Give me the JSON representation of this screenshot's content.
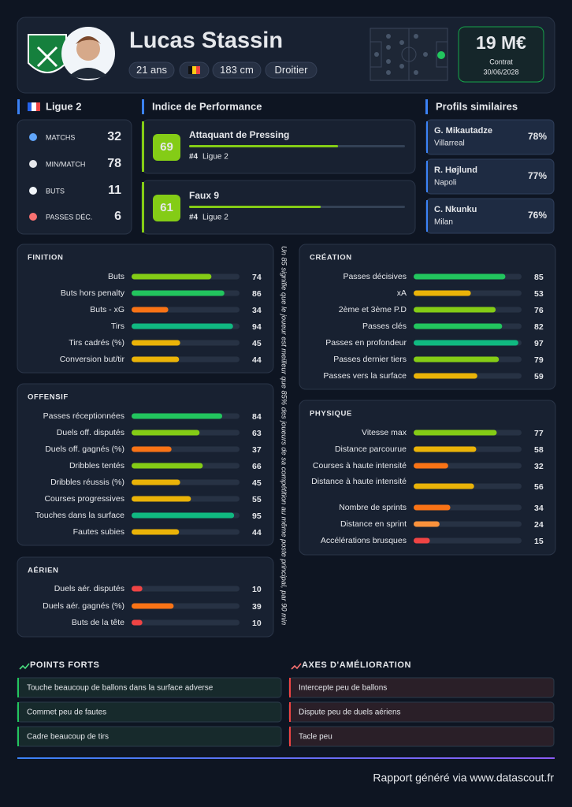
{
  "header": {
    "name": "Lucas Stassin",
    "tags": [
      "21 ans",
      "183 cm",
      "Droitier"
    ],
    "value": "19 M€",
    "contract_label": "Contrat",
    "contract_date": "30/06/2028"
  },
  "xlim": [
    0,
    100
  ],
  "league": {
    "title": "Ligue 2",
    "stats": [
      {
        "label": "MATCHS",
        "value": 32
      },
      {
        "label": "MIN/MATCH",
        "value": 78
      },
      {
        "label": "BUTS",
        "value": 11
      },
      {
        "label": "PASSES DÉC.",
        "value": 6
      }
    ]
  },
  "performance": {
    "title": "Indice de Performance",
    "profiles": [
      {
        "score": 69,
        "name": "Attaquant de Pressing",
        "rank": "#4",
        "league": "Ligue 2"
      },
      {
        "score": 61,
        "name": "Faux 9",
        "rank": "#4",
        "league": "Ligue 2"
      }
    ]
  },
  "similar": {
    "title": "Profils similaires",
    "players": [
      {
        "name": "G. Mikautadze",
        "club": "Villarreal",
        "match": "78%"
      },
      {
        "name": "R. Højlund",
        "club": "Napoli",
        "match": "77%"
      },
      {
        "name": "C. Nkunku",
        "club": "Milan",
        "match": "76%"
      }
    ]
  },
  "note": "Un 85 signifie que le joueur est meilleur que 85% des joueurs de sa compétition au même poste principal, par 90 min",
  "sections": [
    {
      "title": "FINITION",
      "metrics": [
        {
          "label": "Buts",
          "value": 74
        },
        {
          "label": "Buts hors penalty",
          "value": 86
        },
        {
          "label": "Buts - xG",
          "value": 34
        },
        {
          "label": "Tirs",
          "value": 94
        },
        {
          "label": "Tirs cadrés (%)",
          "value": 45
        },
        {
          "label": "Conversion but/tir",
          "value": 44
        }
      ]
    },
    {
      "title": "OFFENSIF",
      "metrics": [
        {
          "label": "Passes réceptionnées",
          "value": 84
        },
        {
          "label": "Duels off. disputés",
          "value": 63
        },
        {
          "label": "Duels off. gagnés (%)",
          "value": 37
        },
        {
          "label": "Dribbles tentés",
          "value": 66
        },
        {
          "label": "Dribbles réussis (%)",
          "value": 45
        },
        {
          "label": "Courses progressives",
          "value": 55
        },
        {
          "label": "Touches dans la surface",
          "value": 95
        },
        {
          "label": "Fautes subies",
          "value": 44
        }
      ]
    },
    {
      "title": "AÉRIEN",
      "metrics": [
        {
          "label": "Duels aér. disputés",
          "value": 10
        },
        {
          "label": "Duels aér. gagnés (%)",
          "value": 39
        },
        {
          "label": "Buts de la tête",
          "value": 10
        }
      ]
    },
    {
      "title": "CRÉATION",
      "metrics": [
        {
          "label": "Passes décisives",
          "value": 85
        },
        {
          "label": "xA",
          "value": 53
        },
        {
          "label": "2ème et 3ème P.D",
          "value": 76
        },
        {
          "label": "Passes clés",
          "value": 82
        },
        {
          "label": "Passes en profondeur",
          "value": 97
        },
        {
          "label": "Passes dernier tiers",
          "value": 79
        },
        {
          "label": "Passes vers la surface",
          "value": 59
        }
      ]
    },
    {
      "title": "PHYSIQUE",
      "metrics": [
        {
          "label": "Vitesse max",
          "value": 77
        },
        {
          "label": "Distance parcourue",
          "value": 58
        },
        {
          "label": "Courses à haute intensité",
          "value": 32
        },
        {
          "label": "Distance à haute intensité",
          "value": 56
        },
        {
          "label": "Nombre de sprints",
          "value": 34
        },
        {
          "label": "Distance en sprint",
          "value": 24
        },
        {
          "label": "Accélérations brusques",
          "value": 15
        }
      ]
    }
  ],
  "strengths": {
    "title": "POINTS FORTS",
    "items": [
      "Touche beaucoup de ballons dans la surface adverse",
      "Commet peu de fautes",
      "Cadre beaucoup de tirs"
    ]
  },
  "improvements": {
    "title": "AXES D'AMÉLIORATION",
    "items": [
      "Intercepte peu de ballons",
      "Dispute peu de duels aériens",
      "Tacle peu"
    ]
  },
  "footer": "Rapport généré via www.datascout.fr"
}
